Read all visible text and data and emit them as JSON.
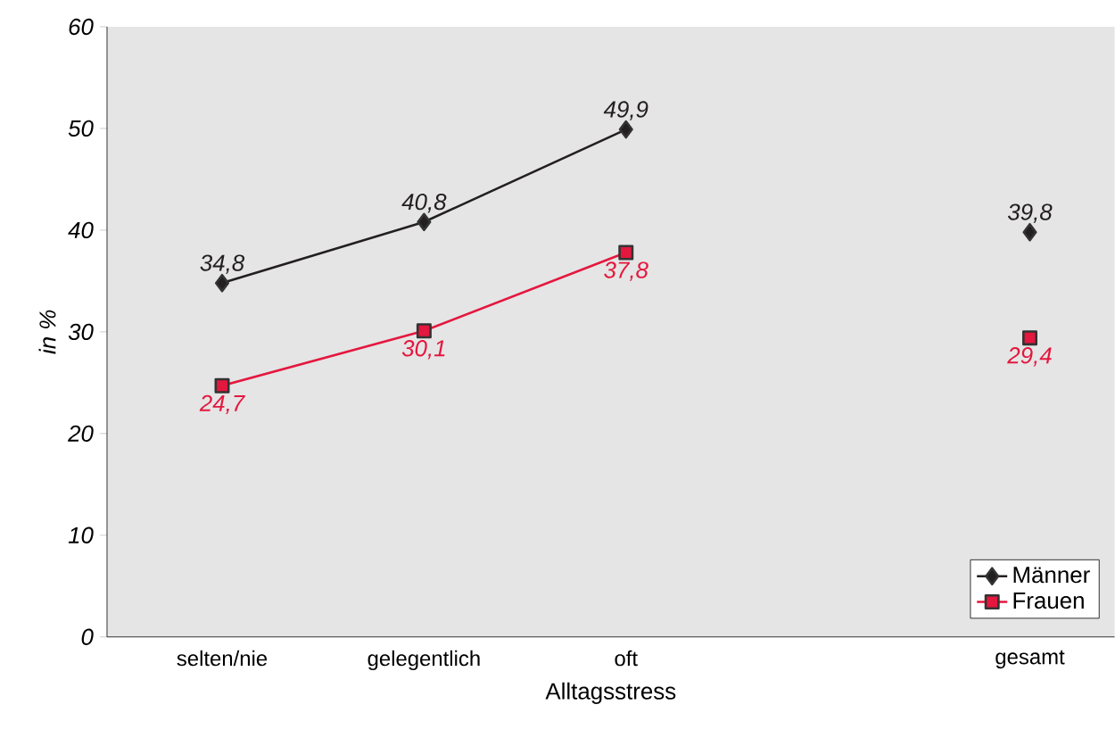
{
  "chart_data": {
    "type": "line",
    "xlabel": "Alltagsstress",
    "ylabel": "in %",
    "categories": [
      "selten/nie",
      "gelegentlich",
      "oft",
      null,
      "gesamt"
    ],
    "series": [
      {
        "name": "Männer",
        "color": "#231f20",
        "marker": "diamond",
        "values": [
          34.8,
          40.8,
          49.9,
          null,
          39.8
        ],
        "value_labels": [
          "34,8",
          "40,8",
          "49,9",
          null,
          "39,8"
        ]
      },
      {
        "name": "Frauen",
        "color": "#e4173e",
        "marker": "square",
        "values": [
          24.7,
          30.1,
          37.8,
          null,
          29.4
        ],
        "value_labels": [
          "24,7",
          "30,1",
          "37,8",
          null,
          "29,4"
        ]
      }
    ],
    "ylim": [
      0,
      60
    ],
    "yticks": [
      0,
      10,
      20,
      30,
      40,
      50,
      60
    ],
    "grid": false,
    "legend": "bottom right",
    "line_style": "solid"
  }
}
